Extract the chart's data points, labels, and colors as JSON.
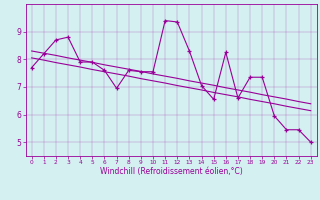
{
  "x": [
    0,
    1,
    2,
    3,
    4,
    5,
    6,
    7,
    8,
    9,
    10,
    11,
    12,
    13,
    14,
    15,
    16,
    17,
    18,
    19,
    20,
    21,
    22,
    23
  ],
  "y_data": [
    7.7,
    8.2,
    8.7,
    8.8,
    7.9,
    7.9,
    7.6,
    6.95,
    7.6,
    7.55,
    7.55,
    9.4,
    9.35,
    8.3,
    7.05,
    6.55,
    8.25,
    6.6,
    7.35,
    7.35,
    5.95,
    5.45,
    5.45,
    5.0
  ],
  "y_trend1": [
    8.05,
    7.97,
    7.88,
    7.8,
    7.72,
    7.63,
    7.55,
    7.47,
    7.39,
    7.3,
    7.22,
    7.14,
    7.05,
    6.97,
    6.89,
    6.8,
    6.72,
    6.64,
    6.55,
    6.47,
    6.39,
    6.3,
    6.22,
    6.14
  ],
  "y_trend2": [
    8.3,
    8.22,
    8.14,
    8.05,
    7.97,
    7.89,
    7.8,
    7.72,
    7.64,
    7.56,
    7.47,
    7.39,
    7.31,
    7.22,
    7.14,
    7.06,
    6.97,
    6.89,
    6.81,
    6.72,
    6.64,
    6.56,
    6.47,
    6.39
  ],
  "color": "#990099",
  "bg_color": "#d4f0f0",
  "xlabel": "Windchill (Refroidissement éolien,°C)",
  "ylim": [
    4.5,
    10.0
  ],
  "xlim": [
    -0.5,
    23.5
  ],
  "yticks": [
    5,
    6,
    7,
    8,
    9
  ],
  "xticks": [
    0,
    1,
    2,
    3,
    4,
    5,
    6,
    7,
    8,
    9,
    10,
    11,
    12,
    13,
    14,
    15,
    16,
    17,
    18,
    19,
    20,
    21,
    22,
    23
  ],
  "line_width": 0.8,
  "marker_size": 3.0,
  "xlabel_fontsize": 5.5,
  "xtick_fontsize": 4.2,
  "ytick_fontsize": 5.5
}
